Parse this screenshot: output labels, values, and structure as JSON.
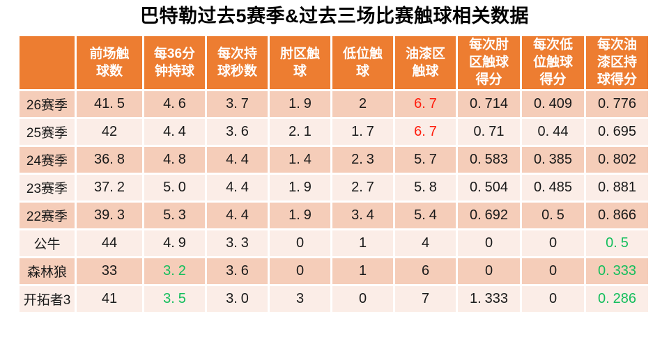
{
  "page": {
    "title": "巴特勒过去5赛季&过去三场比赛触球相关数据"
  },
  "colors": {
    "header_bg": "#ED7D31",
    "header_text": "#FFFFFF",
    "row_band_dark": "#F5CDB9",
    "row_band_light": "#FBEDE7",
    "text": "#1A1A1A",
    "highlight_red": "#FF1D0D",
    "highlight_green": "#14BE5C"
  },
  "chart_data": {
    "type": "table",
    "title": "巴特勒过去5赛季&过去三场比赛触球相关数据",
    "columns": [
      "",
      "前场触球数",
      "每36分钟持球",
      "每次持球秒数",
      "肘区触球",
      "低位触球",
      "油漆区触球",
      "每次肘区触球得分",
      "每次低位触球得分",
      "每次油漆区持球得分"
    ],
    "rows": [
      {
        "label": "26赛季",
        "values": [
          "41.5",
          "4.6",
          "3.7",
          "1.9",
          "2",
          "6.7",
          "0.714",
          "0.409",
          "0.776"
        ],
        "value_colors": {
          "5": "red"
        }
      },
      {
        "label": "25赛季",
        "values": [
          "42",
          "4.4",
          "3.6",
          "2.1",
          "1.7",
          "6.7",
          "0.71",
          "0.44",
          "0.695"
        ],
        "value_colors": {
          "5": "red"
        }
      },
      {
        "label": "24赛季",
        "values": [
          "36.8",
          "4.8",
          "4.4",
          "1.4",
          "2.3",
          "5.7",
          "0.583",
          "0.385",
          "0.802"
        ],
        "value_colors": {}
      },
      {
        "label": "23赛季",
        "values": [
          "37.2",
          "5.0",
          "4.4",
          "1.9",
          "2.7",
          "5.8",
          "0.504",
          "0.485",
          "0.881"
        ],
        "value_colors": {}
      },
      {
        "label": "22赛季",
        "values": [
          "39.3",
          "5.3",
          "4.4",
          "1.9",
          "3.4",
          "5.4",
          "0.692",
          "0.5",
          "0.866"
        ],
        "value_colors": {}
      },
      {
        "label": "公牛",
        "values": [
          "44",
          "4.9",
          "3.3",
          "0",
          "1",
          "4",
          "0",
          "0",
          "0.5"
        ],
        "value_colors": {
          "8": "green"
        }
      },
      {
        "label": "森林狼",
        "values": [
          "33",
          "3.2",
          "3.6",
          "0",
          "1",
          "6",
          "0",
          "0",
          "0.333"
        ],
        "value_colors": {
          "1": "green",
          "8": "green"
        }
      },
      {
        "label": "开拓者3",
        "values": [
          "41",
          "3.5",
          "3.0",
          "3",
          "0",
          "7",
          "1.333",
          "0",
          "0.286"
        ],
        "value_colors": {
          "1": "green",
          "8": "green"
        }
      }
    ]
  }
}
